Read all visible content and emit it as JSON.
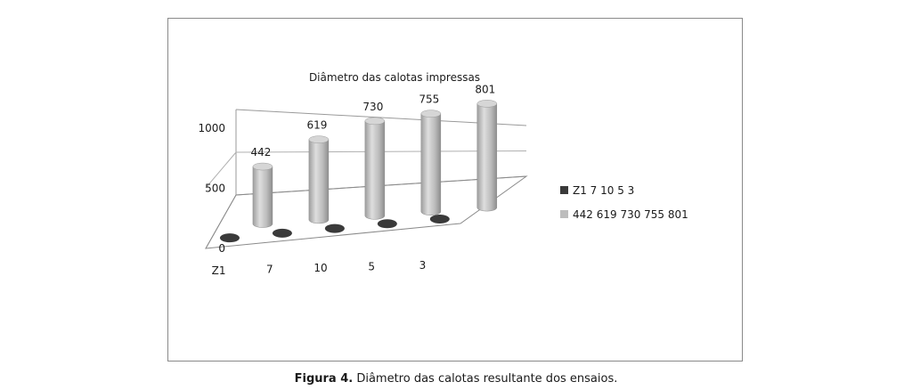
{
  "chart_data": {
    "type": "bar",
    "title": "Diâmetro das calotas impressas",
    "categories": [
      "Z1",
      "7",
      "10",
      "5",
      "3"
    ],
    "series": [
      {
        "name": "Z1 7 10 5 3",
        "values": [
          0,
          0,
          0,
          0,
          0
        ],
        "color": "#3a3a3a"
      },
      {
        "name": "442 619 730 755 801",
        "values": [
          442,
          619,
          730,
          755,
          801
        ],
        "color": "#bdbdbd"
      }
    ],
    "data_labels": [
      "442",
      "619",
      "730",
      "755",
      "801"
    ],
    "y_ticks": [
      "0",
      "500",
      "1000"
    ],
    "ylim": [
      0,
      1000
    ],
    "legend_position": "right",
    "style": "3d-cylinder"
  },
  "caption": {
    "label": "Figura 4.",
    "text": " Diâmetro das calotas resultante dos ensaios."
  }
}
